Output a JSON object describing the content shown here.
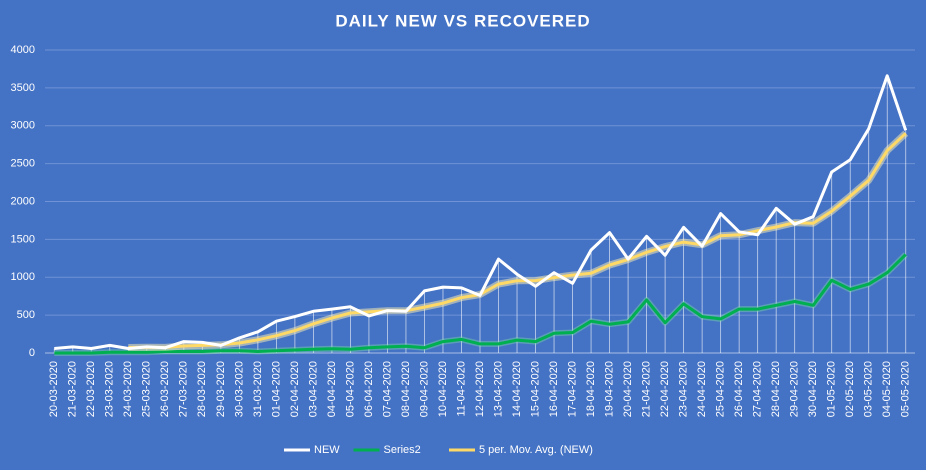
{
  "chart_data": {
    "type": "line",
    "title": "DAILY NEW VS RECOVERED",
    "categories": [
      "20-03-2020",
      "21-03-2020",
      "22-03-2020",
      "23-03-2020",
      "24-03-2020",
      "25-03-2020",
      "26-03-2020",
      "27-03-2020",
      "28-03-2020",
      "29-03-2020",
      "30-03-2020",
      "31-03-2020",
      "01-04-2020",
      "02-04-2020",
      "03-04-2020",
      "04-04-2020",
      "05-04-2020",
      "06-04-2020",
      "07-04-2020",
      "08-04-2020",
      "09-04-2020",
      "10-04-2020",
      "11-04-2020",
      "12-04-2020",
      "13-04-2020",
      "14-04-2020",
      "15-04-2020",
      "16-04-2020",
      "17-04-2020",
      "18-04-2020",
      "19-04-2020",
      "20-04-2020",
      "21-04-2020",
      "22-04-2020",
      "23-04-2020",
      "24-04-2020",
      "25-04-2020",
      "26-04-2020",
      "27-04-2020",
      "28-04-2020",
      "29-04-2020",
      "30-04-2020",
      "01-05-2020",
      "02-05-2020",
      "03-05-2020",
      "04-05-2020",
      "05-05-2020"
    ],
    "series": [
      {
        "name": "NEW",
        "color": "#ffffff",
        "values": [
          60,
          80,
          60,
          100,
          60,
          80,
          70,
          150,
          140,
          100,
          200,
          280,
          420,
          480,
          550,
          580,
          610,
          490,
          560,
          550,
          820,
          870,
          860,
          760,
          1240,
          1040,
          880,
          1060,
          920,
          1360,
          1590,
          1240,
          1540,
          1290,
          1660,
          1410,
          1840,
          1600,
          1560,
          1910,
          1700,
          1800,
          2390,
          2550,
          2960,
          3660,
          2940
        ]
      },
      {
        "name": "Series2",
        "color": "#00b050",
        "values": [
          0,
          0,
          0,
          10,
          10,
          10,
          20,
          20,
          20,
          30,
          30,
          20,
          30,
          40,
          50,
          55,
          50,
          70,
          80,
          90,
          70,
          150,
          180,
          120,
          120,
          170,
          150,
          260,
          270,
          420,
          380,
          410,
          700,
          400,
          650,
          480,
          450,
          580,
          580,
          630,
          680,
          630,
          960,
          840,
          910,
          1060,
          1300
        ]
      },
      {
        "name": "5 per. Mov. Avg. (NEW)",
        "color": "#ffd966",
        "values": [
          null,
          null,
          null,
          null,
          72,
          76,
          74,
          92,
          100,
          108,
          132,
          174,
          228,
          296,
          386,
          462,
          528,
          542,
          558,
          558,
          606,
          658,
          732,
          772,
          910,
          954,
          956,
          996,
          1028,
          1052,
          1162,
          1234,
          1330,
          1404,
          1464,
          1428,
          1548,
          1560,
          1614,
          1664,
          1722,
          1714,
          1872,
          2070,
          2280,
          2672,
          2900
        ]
      }
    ],
    "ylim": [
      0,
      4000
    ],
    "yticks": [
      0,
      500,
      1000,
      1500,
      2000,
      2500,
      3000,
      3500,
      4000
    ],
    "grid": true,
    "legend": "bottom"
  }
}
